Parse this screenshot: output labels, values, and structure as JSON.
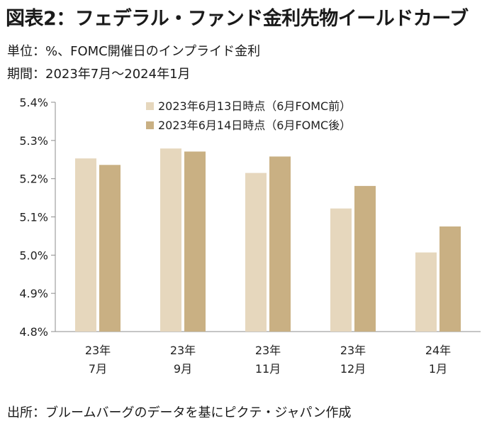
{
  "title": "図表2：フェデラル・ファンド金利先物イールドカーブ",
  "unit_line": "単位：%、FOMC開催日のインプライド金利",
  "period_line": "期間：2023年7月〜2024年1月",
  "source_line": "出所：ブルームバーグのデータを基にピクテ・ジャパン作成",
  "colors": {
    "series1": "#e6d7bd",
    "series2": "#c9b083",
    "axis": "#8c8c8c"
  },
  "chart_data": {
    "type": "bar",
    "categories": [
      [
        "23年",
        "7月"
      ],
      [
        "23年",
        "9月"
      ],
      [
        "23年",
        "11月"
      ],
      [
        "23年",
        "12月"
      ],
      [
        "24年",
        "1月"
      ]
    ],
    "series": [
      {
        "name": "2023年6月13日時点（6月FOMC前）",
        "values": [
          5.253,
          5.279,
          5.215,
          5.122,
          5.007
        ]
      },
      {
        "name": "2023年6月14日時点（6月FOMC後）",
        "values": [
          5.236,
          5.271,
          5.258,
          5.181,
          5.075
        ]
      }
    ],
    "yticks": [
      "4.8%",
      "4.9%",
      "5.0%",
      "5.1%",
      "5.2%",
      "5.3%",
      "5.4%"
    ],
    "ylim": [
      4.8,
      5.4
    ],
    "legend": "top-center",
    "grid": false
  }
}
